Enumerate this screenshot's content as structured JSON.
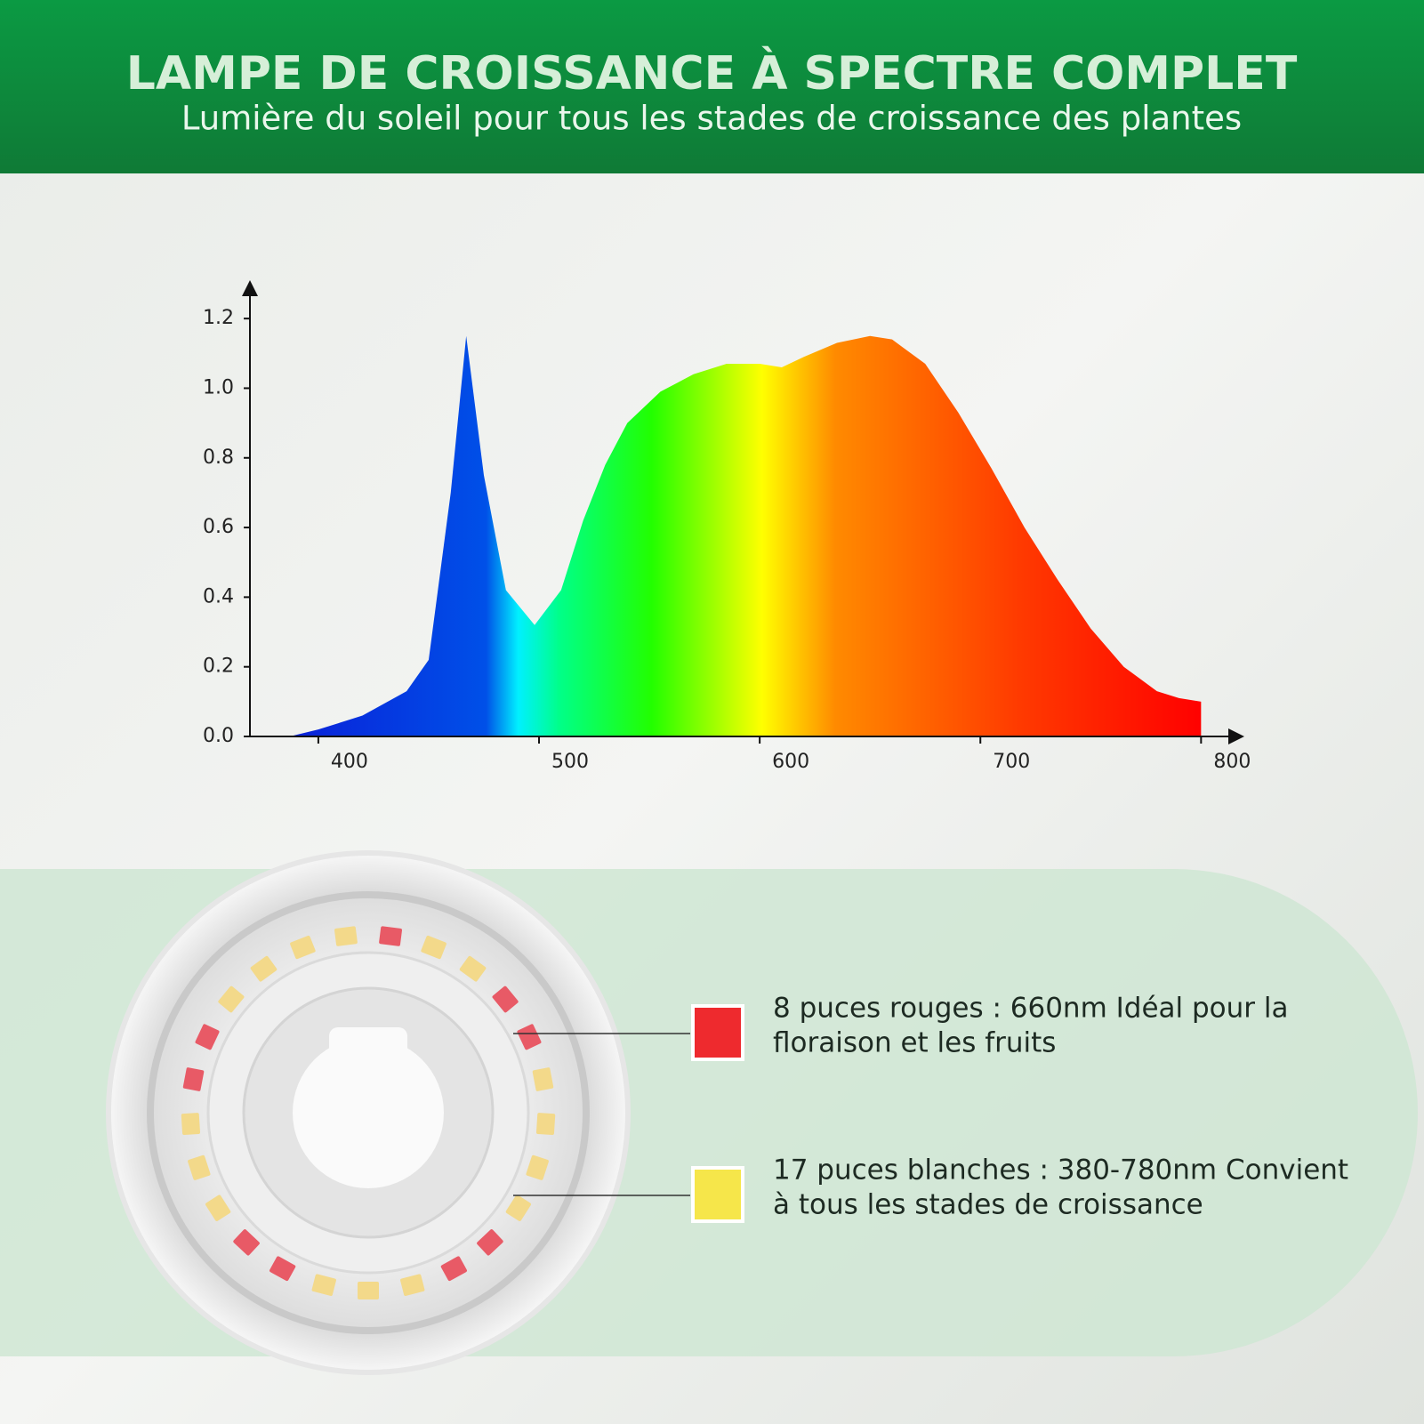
{
  "header": {
    "title": "LAMPE DE CROISSANCE À SPECTRE COMPLET",
    "subtitle": "Lumière du soleil pour tous les stades de croissance des plantes"
  },
  "chart_data": {
    "type": "area",
    "x": [
      387,
      400,
      420,
      440,
      450,
      460,
      467,
      475,
      485,
      498,
      510,
      520,
      530,
      540,
      555,
      570,
      585,
      600,
      610,
      620,
      635,
      650,
      660,
      675,
      690,
      705,
      720,
      735,
      750,
      765,
      780,
      790,
      800
    ],
    "values": [
      0,
      0.02,
      0.06,
      0.13,
      0.22,
      0.7,
      1.15,
      0.75,
      0.42,
      0.32,
      0.42,
      0.62,
      0.78,
      0.9,
      0.99,
      1.04,
      1.07,
      1.07,
      1.06,
      1.09,
      1.13,
      1.15,
      1.14,
      1.07,
      0.93,
      0.77,
      0.6,
      0.45,
      0.31,
      0.2,
      0.13,
      0.11,
      0.1
    ],
    "xlim": [
      369,
      818
    ],
    "ylim": [
      0,
      1.3
    ],
    "xticks": [
      400,
      500,
      600,
      700,
      800
    ],
    "yticks": [
      {
        "value": 0,
        "label": "0.0"
      },
      0.2,
      0.4,
      0.6,
      0.8,
      {
        "value": 1,
        "label": "1.0"
      },
      1.2
    ]
  },
  "legend": [
    {
      "color": "#ee2a2e",
      "lines": [
        "8 puces rouges : 660nm Idéal pour la",
        "floraison et les fruits"
      ]
    },
    {
      "color": "#f6e64a",
      "lines": [
        "17 puces blanches : 380-780nm Convient",
        "à tous les stades de croissance"
      ]
    }
  ]
}
